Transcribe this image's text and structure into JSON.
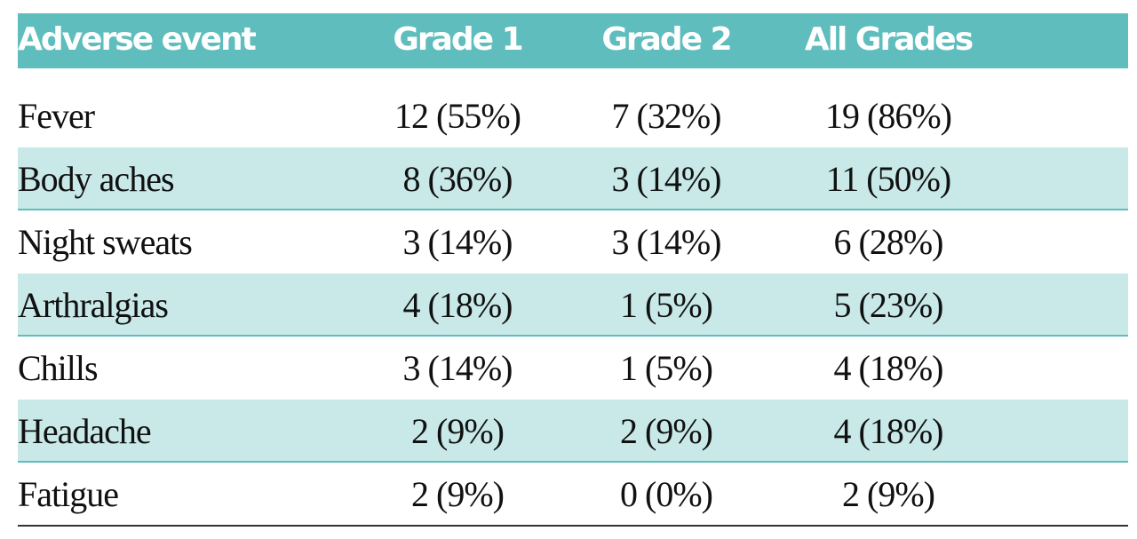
{
  "table": {
    "columns": [
      "Adverse event",
      "Grade 1",
      "Grade 2",
      "All Grades"
    ],
    "rows": [
      [
        "Fever",
        "12 (55%)",
        "7 (32%)",
        "19 (86%)"
      ],
      [
        "Body aches",
        "8 (36%)",
        "3 (14%)",
        "11 (50%)"
      ],
      [
        "Night sweats",
        "3 (14%)",
        "3 (14%)",
        "6 (28%)"
      ],
      [
        "Arthralgias",
        "4 (18%)",
        "1 (5%)",
        "5 (23%)"
      ],
      [
        "Chills",
        "3 (14%)",
        "1 (5%)",
        "4 (18%)"
      ],
      [
        "Headache",
        "2 (9%)",
        "2 (9%)",
        "4 (18%)"
      ],
      [
        "Fatigue",
        "2 (9%)",
        "0 (0%)",
        "2 (9%)"
      ]
    ]
  }
}
